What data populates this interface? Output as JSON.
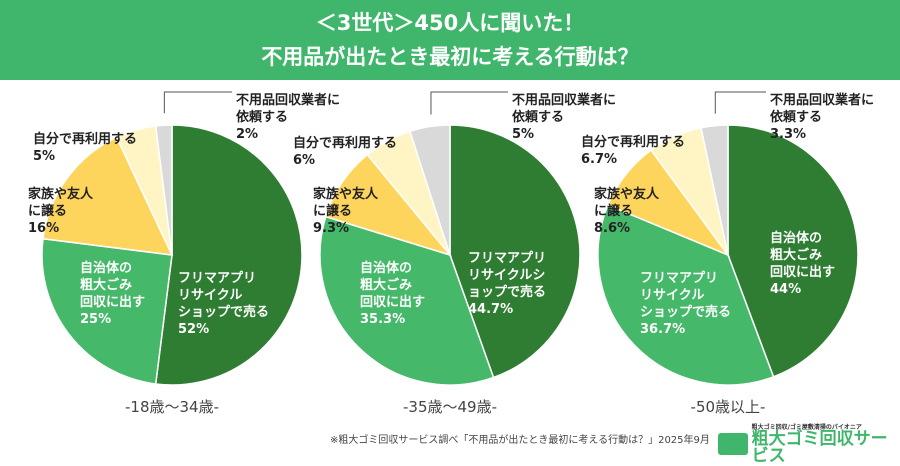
{
  "title": {
    "line1": "＜3世代＞450人に聞いた！",
    "line2": "不用品が出たとき最初に考える行動は？"
  },
  "colors": {
    "dark_green": "#2e7d32",
    "green": "#45b86a",
    "yellow": "#fdd45c",
    "light_yellow": "#fff5c4",
    "gray": "#d9d9d9",
    "header": "#3fb66b"
  },
  "chart_data": [
    {
      "type": "pie",
      "xlabel": "-18歳〜34歳-",
      "slices": [
        {
          "label": "フリマアプリ\nリサイクル\nショップで売る",
          "value": 52,
          "text": "52%",
          "color": "dark_green"
        },
        {
          "label": "自治体の\n粗大ごみ\n回収に出す",
          "value": 25,
          "text": "25%",
          "color": "green"
        },
        {
          "label": "家族や友人\nに譲る",
          "value": 16,
          "text": "16%",
          "color": "yellow"
        },
        {
          "label": "自分で再利用する",
          "value": 5,
          "text": "5%",
          "color": "light_yellow"
        },
        {
          "label": "不用品回収業者に\n依頼する",
          "value": 2,
          "text": "2%",
          "color": "gray"
        }
      ]
    },
    {
      "type": "pie",
      "xlabel": "-35歳〜49歳-",
      "slices": [
        {
          "label": "フリマアプリ\nリサイクルシ\nョップで売る",
          "value": 44.7,
          "text": "44.7%",
          "color": "dark_green"
        },
        {
          "label": "自治体の\n粗大ごみ\n回収に出す",
          "value": 35.3,
          "text": "35.3%",
          "color": "green"
        },
        {
          "label": "家族や友人\nに譲る",
          "value": 9.3,
          "text": "9.3%",
          "color": "yellow"
        },
        {
          "label": "自分で再利用する",
          "value": 6,
          "text": "6%",
          "color": "light_yellow"
        },
        {
          "label": "不用品回収業者に\n依頼する",
          "value": 5,
          "text": "5%",
          "color": "gray"
        }
      ]
    },
    {
      "type": "pie",
      "xlabel": "-50歳以上-",
      "slices": [
        {
          "label": "自治体の\n粗大ごみ\n回収に出す",
          "value": 44,
          "text": "44%",
          "color": "dark_green"
        },
        {
          "label": "フリマアプリ\nリサイクル\nショップで売る",
          "value": 36.7,
          "text": "36.7%",
          "color": "green"
        },
        {
          "label": "家族や友人\nに譲る",
          "value": 8.6,
          "text": "8.6%",
          "color": "yellow"
        },
        {
          "label": "自分で再利用する",
          "value": 6.7,
          "text": "6.7%",
          "color": "light_yellow"
        },
        {
          "label": "不用品回収業者に\n依頼する",
          "value": 3.3,
          "text": "3.3%",
          "color": "gray"
        }
      ]
    }
  ],
  "footer": {
    "source": "※粗大ゴミ回収サービス調べ「不用品が出たとき最初に考える行動は？」2025年9月",
    "logo_text": "粗大ゴミ回収サービス",
    "logo_sub": "粗大ゴミ回収/ゴミ屋敷清掃のパイオニア"
  }
}
